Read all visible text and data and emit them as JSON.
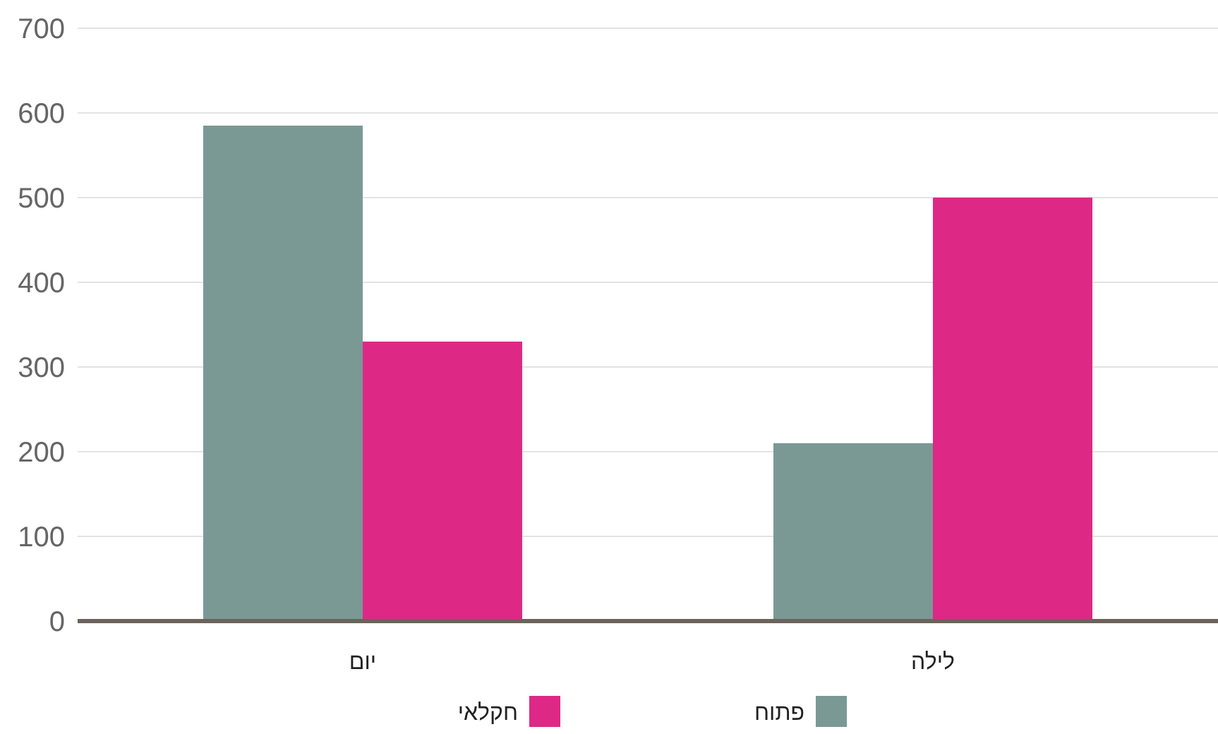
{
  "chart_data": {
    "type": "bar",
    "categories": [
      "יום",
      "לילה"
    ],
    "series": [
      {
        "name": "פתוח",
        "color": "#7a9995",
        "values": [
          585,
          210
        ]
      },
      {
        "name": "חקלאי",
        "color": "#de2886",
        "values": [
          330,
          500
        ]
      }
    ],
    "ylim": [
      0,
      700
    ],
    "yticks": [
      0,
      100,
      200,
      300,
      400,
      500,
      600,
      700
    ],
    "grid": "y",
    "legend": "bottom"
  }
}
